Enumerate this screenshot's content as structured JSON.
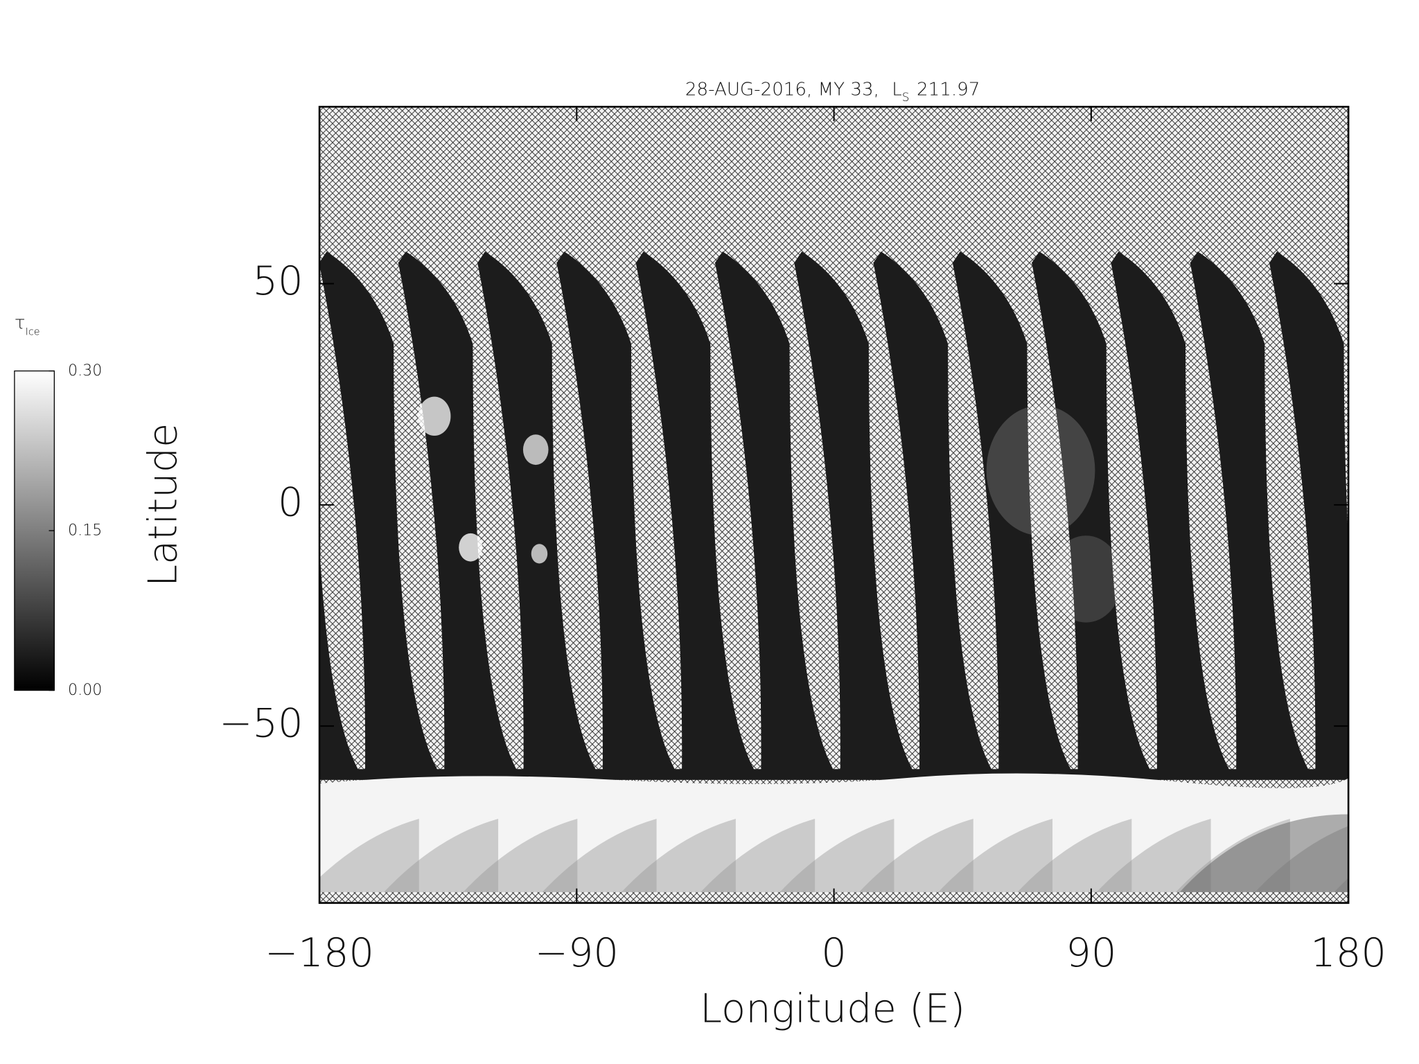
{
  "chart_data": {
    "type": "map",
    "title": "28-AUG-2016, MY 33,",
    "title_ls": "L",
    "title_ls_sub": "S",
    "title_ls_value": "211.97",
    "xlabel": "Longitude (E)",
    "ylabel": "Latitude",
    "xlim": [
      -180,
      180
    ],
    "xticks": [
      {
        "value": -180,
        "label": "−180"
      },
      {
        "value": -90,
        "label": "−90"
      },
      0,
      90,
      {
        "value": 180,
        "label": "180"
      }
    ],
    "ylim": [
      -90,
      90
    ],
    "yticks": [
      50,
      0,
      {
        "value": -50,
        "label": "−50"
      }
    ],
    "colorbar": {
      "label": "τ",
      "label_sub": "Ice",
      "clim": [
        0,
        0.3
      ],
      "ticks": [
        {
          "value": 0.3,
          "label": "0.30"
        },
        {
          "value": 0.15,
          "label": "0.15"
        },
        {
          "value": 0,
          "label": "0.00"
        }
      ],
      "colormap": [
        "#000000",
        "#ffffff"
      ]
    }
  }
}
